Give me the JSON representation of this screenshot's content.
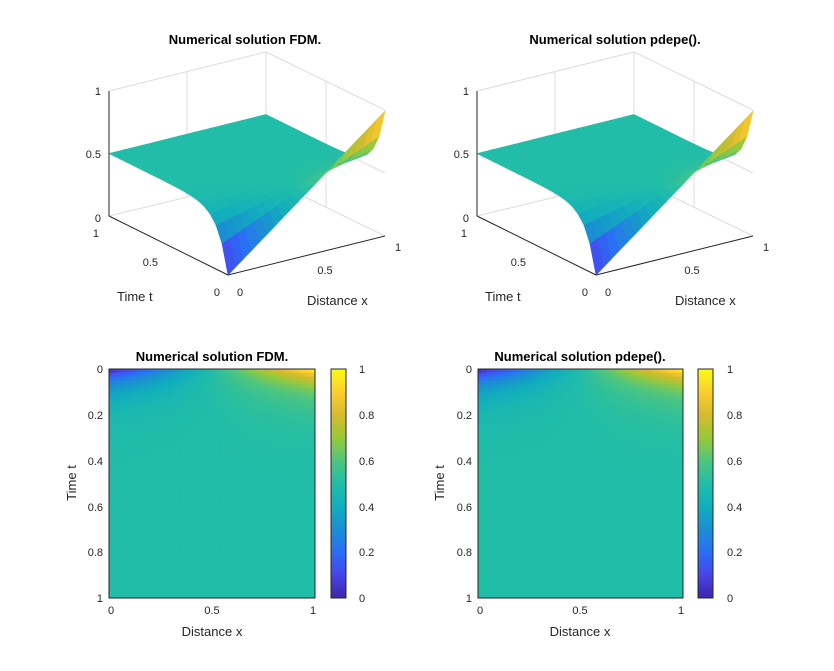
{
  "figure": {
    "colormap": [
      "#3e26a8",
      "#4744e8",
      "#2a6ef6",
      "#1b8fd2",
      "#11aebd",
      "#21bda8",
      "#4fc57e",
      "#97c93a",
      "#d7ba2e",
      "#fcce2e",
      "#f9fb15"
    ]
  },
  "chart_data": [
    {
      "type": "surface",
      "title": "Numerical solution FDM.",
      "xlabel": "Distance x",
      "ylabel": "Time t",
      "zlabel": "",
      "xlim": [
        0,
        1
      ],
      "ylim": [
        0,
        1
      ],
      "zlim": [
        0,
        1
      ],
      "xticks": [
        "0",
        "0.5",
        "1"
      ],
      "yticks": [
        "0",
        "0.5",
        "1"
      ],
      "zticks": [
        "0",
        "0.5",
        "1"
      ],
      "grid": true,
      "description_series": {
        "x": [
          0,
          0.1,
          0.2,
          0.3,
          0.4,
          0.5,
          0.6,
          0.7,
          0.8,
          0.9,
          1.0
        ],
        "u_at_t0": [
          0.0,
          0.1,
          0.2,
          0.3,
          0.4,
          0.5,
          0.6,
          0.7,
          0.8,
          0.9,
          1.0
        ],
        "u_steady": 0.5
      }
    },
    {
      "type": "surface",
      "title": "Numerical solution pdepe().",
      "xlabel": "Distance x",
      "ylabel": "Time t",
      "zlabel": "",
      "xlim": [
        0,
        1
      ],
      "ylim": [
        0,
        1
      ],
      "zlim": [
        0,
        1
      ],
      "xticks": [
        "0",
        "0.5",
        "1"
      ],
      "yticks": [
        "0",
        "0.5",
        "1"
      ],
      "zticks": [
        "0",
        "0.5",
        "1"
      ],
      "grid": true,
      "description_series": {
        "x": [
          0,
          0.1,
          0.2,
          0.3,
          0.4,
          0.5,
          0.6,
          0.7,
          0.8,
          0.9,
          1.0
        ],
        "u_at_t0": [
          0.0,
          0.1,
          0.2,
          0.3,
          0.4,
          0.5,
          0.6,
          0.7,
          0.8,
          0.9,
          1.0
        ],
        "u_steady": 0.5
      }
    },
    {
      "type": "heatmap",
      "title": "Numerical solution FDM.",
      "xlabel": "Distance x",
      "ylabel": "Time t",
      "xlim": [
        0,
        1
      ],
      "ylim": [
        0,
        1
      ],
      "xticks": [
        "0",
        "0.5",
        "1"
      ],
      "yticks": [
        "0",
        "0.2",
        "0.4",
        "0.6",
        "0.8",
        "1"
      ],
      "y_direction": "reverse",
      "colorbar": {
        "range": [
          0,
          1
        ],
        "ticks": [
          "0",
          "0.2",
          "0.4",
          "0.6",
          "0.8",
          "1"
        ]
      }
    },
    {
      "type": "heatmap",
      "title": "Numerical solution pdepe().",
      "xlabel": "Distance x",
      "ylabel": "Time t",
      "xlim": [
        0,
        1
      ],
      "ylim": [
        0,
        1
      ],
      "xticks": [
        "0",
        "0.5",
        "1"
      ],
      "yticks": [
        "0",
        "0.2",
        "0.4",
        "0.6",
        "0.8",
        "1"
      ],
      "y_direction": "reverse",
      "colorbar": {
        "range": [
          0,
          1
        ],
        "ticks": [
          "0",
          "0.2",
          "0.4",
          "0.6",
          "0.8",
          "1"
        ]
      }
    }
  ]
}
